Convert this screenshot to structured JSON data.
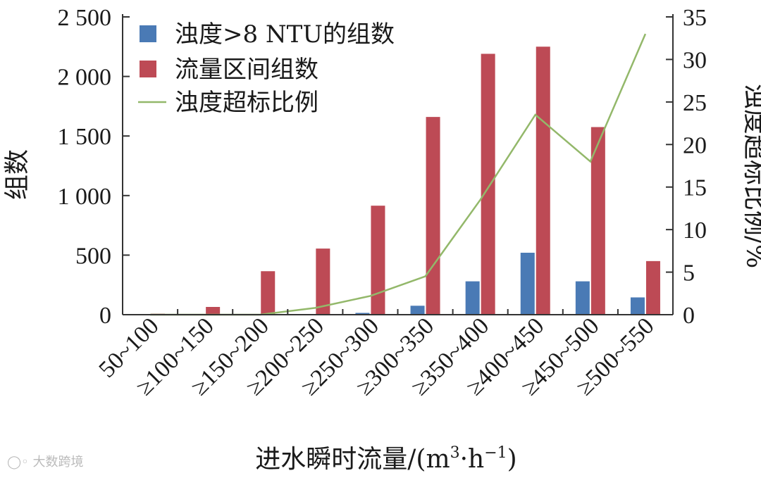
{
  "chart_data": {
    "type": "bar",
    "categories": [
      "50~100",
      "≥100~150",
      "≥150~200",
      "≥200~250",
      "≥250~300",
      "≥300~350",
      "≥350~400",
      "≥400~450",
      "≥450~500",
      "≥500~550"
    ],
    "series": [
      {
        "name": "浊度>8 NTU的组数",
        "type": "bar",
        "axis": "left",
        "color": "#4a7ab5",
        "values": [
          0,
          0,
          0,
          0,
          15,
          75,
          280,
          520,
          280,
          145
        ]
      },
      {
        "name": "流量区间组数",
        "type": "bar",
        "axis": "left",
        "color": "#bd4a55",
        "values": [
          8,
          65,
          365,
          555,
          915,
          1660,
          2190,
          2250,
          1575,
          450
        ]
      },
      {
        "name": "浊度超标比例",
        "type": "line",
        "axis": "right",
        "color": "#93b86a",
        "values": [
          0,
          0,
          0,
          0.8,
          2.2,
          4.5,
          13.5,
          23.5,
          18.0,
          33.0
        ]
      }
    ],
    "xlabel": "进水瞬时流量/(m³·h⁻¹)",
    "xlabel_parts": {
      "base": "进水瞬时流量/(m",
      "sup1": "3",
      "mid": "·h",
      "sup2": "−1",
      "end": ")"
    },
    "ylabel": "组数",
    "y2label": "浊度超标比例/%",
    "ylim": [
      0,
      2500
    ],
    "y2lim": [
      0,
      35
    ],
    "yticks": [
      0,
      500,
      1000,
      1500,
      2000,
      2500
    ],
    "yticklabels": [
      "0",
      "500",
      "1 000",
      "1 500",
      "2 000",
      "2 500"
    ],
    "y2ticks": [
      0,
      5,
      10,
      15,
      20,
      25,
      30,
      35
    ],
    "y2ticklabels": [
      "0",
      "5",
      "10",
      "15",
      "20",
      "25",
      "30",
      "35"
    ],
    "legend": [
      "浊度>8 NTU的组数",
      "流量区间组数",
      "浊度超标比例"
    ],
    "legend_position": "top-left"
  },
  "watermark": "大数跨境"
}
